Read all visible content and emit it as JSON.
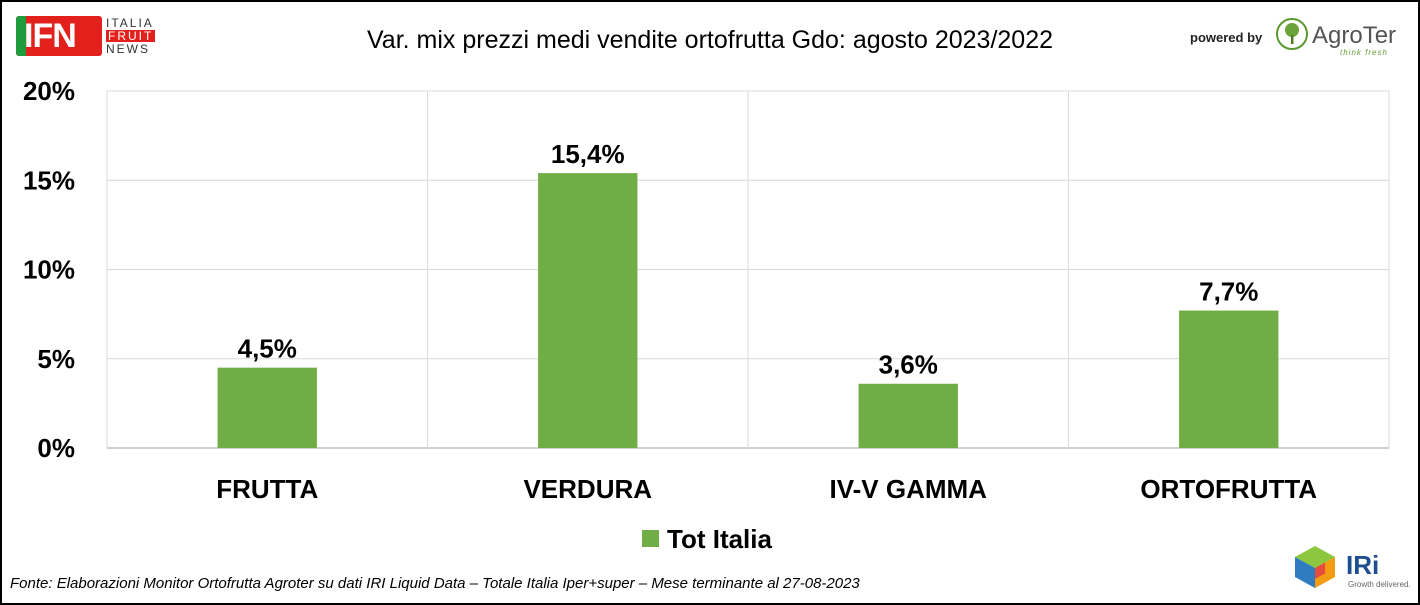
{
  "header": {
    "title": "Var. mix prezzi medi vendite ortofrutta Gdo: agosto 2023/2022",
    "ifn_logo": {
      "letters": "IFN",
      "line1": "ITALIA",
      "line2": "FRUIT",
      "line3": "NEWS"
    },
    "powered_by": "powered by",
    "agroter": {
      "name": "AgroTer",
      "tagline": "think fresh"
    }
  },
  "footer": {
    "source": "Fonte: Elaborazioni Monitor Ortofrutta Agroter su dati IRI Liquid Data – Totale Italia Iper+super – Mese terminante al 27-08-2023",
    "iri": {
      "name": "IRi",
      "tagline": "Growth delivered."
    }
  },
  "colors": {
    "bar": "#70ad47",
    "grid": "#d9d9d9",
    "axis": "#bfbfbf",
    "ifn_red": "#e2211c",
    "ifn_green": "#1f9a3d"
  },
  "chart_data": {
    "type": "bar",
    "categories": [
      "FRUTTA",
      "VERDURA",
      "IV-V GAMMA",
      "ORTOFRUTTA"
    ],
    "series": [
      {
        "name": "Tot Italia",
        "values": [
          4.5,
          15.4,
          3.6,
          7.7
        ],
        "labels": [
          "4,5%",
          "15,4%",
          "3,6%",
          "7,7%"
        ]
      }
    ],
    "ylim": [
      0,
      20
    ],
    "yticks": [
      0,
      5,
      10,
      15,
      20
    ],
    "ytick_labels": [
      "0%",
      "5%",
      "10%",
      "15%",
      "20%"
    ],
    "grid": true,
    "legend": "bottom"
  }
}
